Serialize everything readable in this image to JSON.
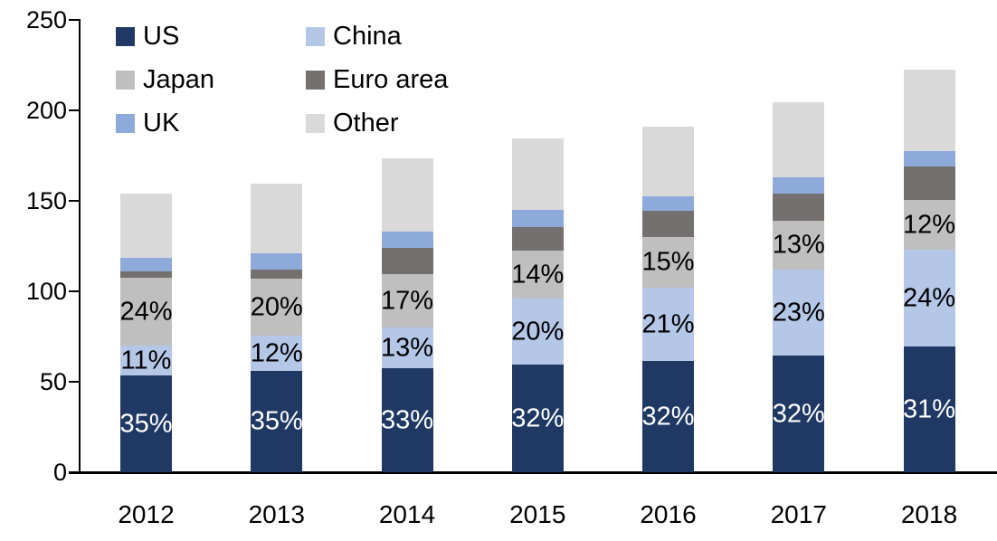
{
  "chart_data": {
    "type": "bar",
    "stacked": true,
    "title": "",
    "xlabel": "",
    "ylabel": "",
    "categories": [
      "2012",
      "2013",
      "2014",
      "2015",
      "2016",
      "2017",
      "2018"
    ],
    "series": [
      {
        "name": "US",
        "color": "#1f3864",
        "label_color": "#ffffff",
        "values": [
          53.5,
          56,
          57.5,
          59.5,
          61.5,
          64.5,
          69.5
        ],
        "labels": [
          "35%",
          "35%",
          "33%",
          "32%",
          "32%",
          "32%",
          "31%"
        ]
      },
      {
        "name": "China",
        "color": "#b4c7e7",
        "label_color": "#000000",
        "values": [
          16.5,
          19.5,
          22.5,
          36.5,
          40.5,
          47.5,
          53.5
        ],
        "labels": [
          "11%",
          "12%",
          "13%",
          "20%",
          "21%",
          "23%",
          "24%"
        ]
      },
      {
        "name": "Japan",
        "color": "#bfbfbf",
        "label_color": "#000000",
        "values": [
          37.5,
          31.5,
          29.5,
          26.5,
          28,
          27,
          27.5
        ],
        "labels": [
          "24%",
          "20%",
          "17%",
          "14%",
          "15%",
          "13%",
          "12%"
        ]
      },
      {
        "name": "Euro area",
        "color": "#747070",
        "label_color": "#000000",
        "values": [
          3.5,
          5,
          14.5,
          13,
          14.5,
          15,
          18.5
        ],
        "labels": [
          "",
          "",
          "",
          "",
          "",
          "",
          ""
        ]
      },
      {
        "name": "UK",
        "color": "#8eaadb",
        "label_color": "#000000",
        "values": [
          7.5,
          9,
          9,
          9.5,
          8,
          9,
          8.5
        ],
        "labels": [
          "",
          "",
          "",
          "",
          "",
          "",
          ""
        ]
      },
      {
        "name": "Other",
        "color": "#d9d9d9",
        "label_color": "#000000",
        "values": [
          35.5,
          38.5,
          40.5,
          39.5,
          38.5,
          41.5,
          45
        ],
        "labels": [
          "",
          "",
          "",
          "",
          "",
          "",
          ""
        ]
      }
    ],
    "totals": [
      154,
      159.5,
      173.5,
      184.5,
      191,
      204.5,
      222.5
    ],
    "ylim": [
      0,
      250
    ],
    "yticks": [
      "0",
      "50",
      "100",
      "150",
      "200",
      "250"
    ],
    "grid": false,
    "axis_color": "#000000",
    "legend_position": "top-left",
    "legend_rows": [
      [
        "US",
        "China"
      ],
      [
        "Japan",
        "Euro area"
      ],
      [
        "UK",
        "Other"
      ]
    ]
  }
}
